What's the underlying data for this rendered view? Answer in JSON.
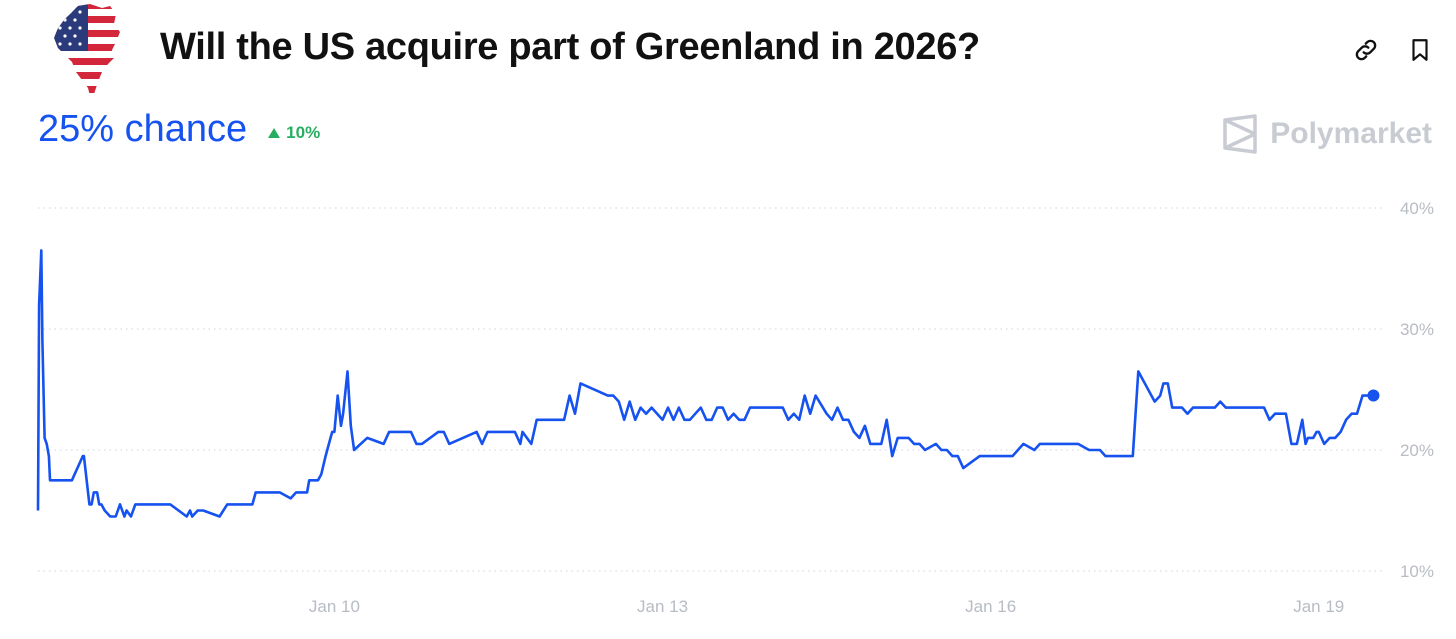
{
  "header": {
    "title": "Will the US acquire part of Greenland in 2026?",
    "logo_icon": "greenland-us-flag-icon",
    "link_icon": "link-icon",
    "bookmark_icon": "bookmark-icon"
  },
  "summary": {
    "chance": "25% chance",
    "change": "10%",
    "change_icon": "triangle-up-icon"
  },
  "brand": {
    "name": "Polymarket",
    "icon": "polymarket-logo-icon"
  },
  "colors": {
    "line": "#1652f0",
    "positive": "#27ae60",
    "grid": "#d9dce1",
    "axis_text": "#b8bcc3"
  },
  "chart_data": {
    "type": "line",
    "x_ticks": [
      "Jan 10",
      "Jan 13",
      "Jan 16",
      "Jan 19"
    ],
    "x_tick_pos": [
      10,
      13,
      16,
      19
    ],
    "y_ticks": [
      "40%",
      "30%",
      "20%",
      "10%"
    ],
    "y_tick_vals": [
      40,
      30,
      20,
      10
    ],
    "ylim": [
      10,
      40
    ],
    "xlim": [
      7.29,
      19.56
    ],
    "grid": true,
    "series": [
      {
        "x": [
          7.29,
          7.3,
          7.32,
          7.33,
          7.35,
          7.37,
          7.39,
          7.4,
          7.6,
          7.7,
          7.71,
          7.76,
          7.78,
          7.8,
          7.83,
          7.85,
          7.87,
          7.9,
          7.95,
          8.0,
          8.04,
          8.08,
          8.1,
          8.14,
          8.18,
          8.2,
          8.22,
          8.3,
          8.36,
          8.5,
          8.65,
          8.68,
          8.7,
          8.75,
          8.8,
          8.95,
          9.02,
          9.05,
          9.1,
          9.25,
          9.28,
          9.3,
          9.5,
          9.6,
          9.65,
          9.7,
          9.75,
          9.77,
          9.8,
          9.85,
          9.88,
          9.92,
          9.95,
          9.98,
          10.0,
          10.03,
          10.06,
          10.08,
          10.12,
          10.15,
          10.18,
          10.3,
          10.45,
          10.5,
          10.7,
          10.75,
          10.8,
          10.95,
          11.0,
          11.05,
          11.3,
          11.35,
          11.4,
          11.65,
          11.7,
          11.72,
          11.8,
          11.85,
          11.9,
          11.95,
          12.0,
          12.05,
          12.08,
          12.1,
          12.15,
          12.2,
          12.25,
          12.5,
          12.55,
          12.6,
          12.65,
          12.7,
          12.75,
          12.8,
          12.85,
          12.9,
          13.0,
          13.05,
          13.1,
          13.15,
          13.2,
          13.25,
          13.3,
          13.35,
          13.4,
          13.45,
          13.5,
          13.55,
          13.6,
          13.65,
          13.7,
          13.75,
          13.8,
          13.85,
          14.1,
          14.15,
          14.2,
          14.25,
          14.3,
          14.35,
          14.4,
          14.5,
          14.55,
          14.6,
          14.65,
          14.7,
          14.75,
          14.8,
          14.85,
          14.9,
          15.0,
          15.05,
          15.1,
          15.15,
          15.2,
          15.25,
          15.3,
          15.35,
          15.4,
          15.5,
          15.55,
          15.6,
          15.65,
          15.7,
          15.75,
          15.9,
          15.95,
          16.0,
          16.1,
          16.2,
          16.3,
          16.4,
          16.45,
          16.5,
          16.6,
          16.7,
          16.75,
          16.8,
          16.9,
          17.0,
          17.05,
          17.1,
          17.3,
          17.35,
          17.5,
          17.55,
          17.58,
          17.62,
          17.66,
          17.7,
          17.75,
          17.8,
          17.85,
          17.9,
          17.95,
          18.05,
          18.1,
          18.15,
          18.5,
          18.55,
          18.6,
          18.65,
          18.7,
          18.75,
          18.8,
          18.85,
          18.88,
          18.9,
          18.95,
          18.98,
          19.0,
          19.05,
          19.1,
          19.15,
          19.2,
          19.25,
          19.3,
          19.35,
          19.4,
          19.45,
          19.5
        ],
        "y": [
          15,
          32,
          36.5,
          29,
          21,
          20.5,
          19.5,
          17.5,
          17.5,
          19.5,
          19.5,
          15.5,
          15.5,
          16.5,
          16.5,
          15.5,
          15.5,
          15,
          14.5,
          14.5,
          15.5,
          14.5,
          15,
          14.5,
          15.5,
          15.5,
          15.5,
          15.5,
          15.5,
          15.5,
          14.5,
          15,
          14.5,
          15,
          15,
          14.5,
          15.5,
          15.5,
          15.5,
          15.5,
          16.5,
          16.5,
          16.5,
          16,
          16.5,
          16.5,
          16.5,
          17.5,
          17.5,
          17.5,
          18,
          19.5,
          20.5,
          21.5,
          21.5,
          24.5,
          22,
          23,
          26.5,
          22,
          20,
          21,
          20.5,
          21.5,
          21.5,
          20.5,
          20.5,
          21.5,
          21.5,
          20.5,
          21.5,
          20.5,
          21.5,
          21.5,
          20.5,
          21.5,
          20.5,
          22.5,
          22.5,
          22.5,
          22.5,
          22.5,
          22.5,
          22.5,
          24.5,
          23,
          25.5,
          24.5,
          24.5,
          24,
          22.5,
          24,
          22.5,
          23.5,
          23,
          23.5,
          22.5,
          23.5,
          22.5,
          23.5,
          22.5,
          22.5,
          23,
          23.5,
          22.5,
          22.5,
          23.5,
          23.5,
          22.5,
          23,
          22.5,
          22.5,
          23.5,
          23.5,
          23.5,
          22.5,
          23,
          22.5,
          24.5,
          23,
          24.5,
          23,
          22.5,
          23.5,
          22.5,
          22.5,
          21.5,
          21,
          22,
          20.5,
          20.5,
          22.5,
          19.5,
          21,
          21,
          21,
          20.5,
          20.5,
          20,
          20.5,
          20,
          20,
          19.5,
          19.5,
          18.5,
          19.5,
          19.5,
          19.5,
          19.5,
          19.5,
          20.5,
          20,
          20.5,
          20.5,
          20.5,
          20.5,
          20.5,
          20.5,
          20,
          20,
          19.5,
          19.5,
          19.5,
          26.5,
          24,
          24.5,
          25.5,
          25.5,
          23.5,
          23.5,
          23.5,
          23,
          23.5,
          23.5,
          23.5,
          23.5,
          24,
          23.5,
          23.5,
          22.5,
          23,
          23,
          23,
          20.5,
          20.5,
          22.5,
          20.5,
          21,
          21,
          21.5,
          21.5,
          20.5,
          21,
          21,
          21.5,
          22.5,
          23,
          23,
          24.5,
          24.5,
          24.5
        ]
      }
    ]
  }
}
